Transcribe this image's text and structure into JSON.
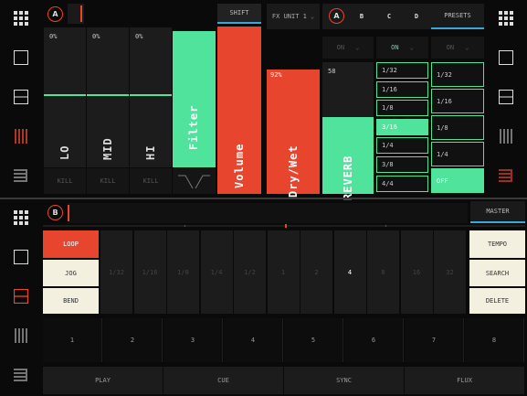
{
  "deck_a": {
    "badge": "A",
    "eq": [
      {
        "label": "LO",
        "value": "0%",
        "kill": "KILL"
      },
      {
        "label": "MID",
        "value": "0%",
        "kill": "KILL"
      },
      {
        "label": "HI",
        "value": "0%",
        "kill": "KILL"
      }
    ],
    "filter": "Filter",
    "shift": "SHIFT",
    "volume": "Volume",
    "fx_unit": "FX UNIT 1",
    "dry_wet": "Dry/Wet",
    "dry_wet_value": "92%",
    "reverb": "REVERB",
    "reverb_value": "58",
    "fx_tabs": [
      "A",
      "B",
      "C",
      "D"
    ],
    "presets": "PRESETS",
    "on": [
      "ON",
      "ON",
      "ON"
    ],
    "beats1": [
      "1/32",
      "1/16",
      "1/8",
      "3/16",
      "1/4",
      "3/8",
      "4/4"
    ],
    "beats2": [
      "1/32",
      "1/16",
      "1/8",
      "1/4",
      "OFF"
    ]
  },
  "deck_b": {
    "badge": "B",
    "master": "MASTER",
    "left": [
      "LOOP",
      "JOG",
      "BEND"
    ],
    "right": [
      "TEMPO",
      "SEARCH",
      "DELETE"
    ],
    "loop_sizes": [
      "1/32",
      "1/16",
      "1/8",
      "1/4",
      "1/2",
      "1",
      "2",
      "4",
      "8",
      "16",
      "32"
    ],
    "cues": [
      "1",
      "2",
      "3",
      "4",
      "5",
      "6",
      "7",
      "8"
    ],
    "transport": [
      "PLAY",
      "CUE",
      "SYNC",
      "FLUX"
    ]
  },
  "colors": {
    "accent": "#e8452f",
    "green": "#4fe39b",
    "cream": "#f3f0e0"
  }
}
